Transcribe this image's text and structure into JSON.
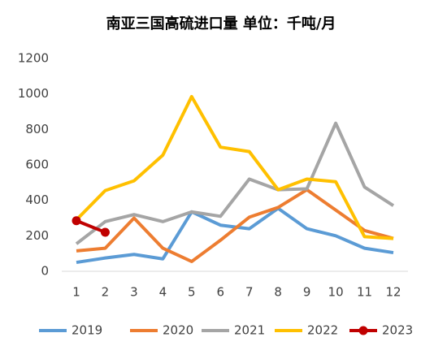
{
  "chart_data": {
    "type": "line",
    "title": "南亚三国高硫进口量  单位：千吨/月",
    "categories": [
      "1",
      "2",
      "3",
      "4",
      "5",
      "6",
      "7",
      "8",
      "9",
      "10",
      "11",
      "12"
    ],
    "ylim": [
      0,
      1200
    ],
    "yticks": [
      0,
      200,
      400,
      600,
      800,
      1000,
      1200
    ],
    "grid": false,
    "legend": "bottom",
    "series": [
      {
        "name": "2019",
        "color": "#5b9bd5",
        "values": [
          50,
          75,
          95,
          70,
          335,
          260,
          240,
          355,
          240,
          200,
          130,
          105
        ]
      },
      {
        "name": "2020",
        "color": "#ed7d31",
        "values": [
          115,
          130,
          300,
          130,
          55,
          175,
          305,
          360,
          460,
          345,
          230,
          185
        ]
      },
      {
        "name": "2021",
        "color": "#a5a5a5",
        "values": [
          155,
          280,
          320,
          280,
          335,
          310,
          520,
          460,
          465,
          835,
          475,
          370
        ]
      },
      {
        "name": "2022",
        "color": "#ffc000",
        "values": [
          290,
          455,
          510,
          655,
          985,
          700,
          675,
          460,
          520,
          505,
          195,
          185
        ]
      },
      {
        "name": "2023",
        "color": "#c00000",
        "markers": true,
        "values": [
          285,
          220,
          null,
          null,
          null,
          null,
          null,
          null,
          null,
          null,
          null,
          null
        ]
      }
    ]
  }
}
